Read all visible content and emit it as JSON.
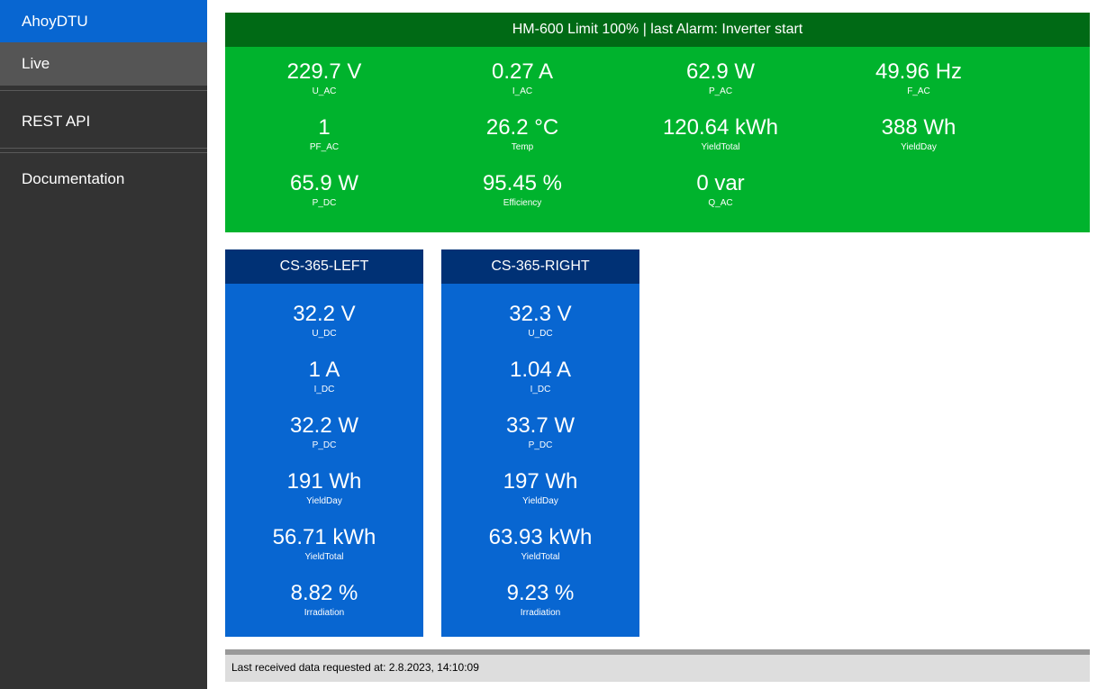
{
  "sidebar": {
    "brand": "AhoyDTU",
    "items": [
      {
        "label": "Live"
      },
      {
        "label": "REST API"
      },
      {
        "label": "Documentation"
      }
    ]
  },
  "inverter": {
    "header": "HM-600 Limit 100% | last Alarm: Inverter start",
    "metrics": [
      {
        "value": "229.7 V",
        "label": "U_AC"
      },
      {
        "value": "0.27 A",
        "label": "I_AC"
      },
      {
        "value": "62.9 W",
        "label": "P_AC"
      },
      {
        "value": "49.96 Hz",
        "label": "F_AC"
      },
      {
        "value": "1",
        "label": "PF_AC"
      },
      {
        "value": "26.2 °C",
        "label": "Temp"
      },
      {
        "value": "120.64 kWh",
        "label": "YieldTotal"
      },
      {
        "value": "388 Wh",
        "label": "YieldDay"
      },
      {
        "value": "65.9 W",
        "label": "P_DC"
      },
      {
        "value": "95.45 %",
        "label": "Efficiency"
      },
      {
        "value": "0 var",
        "label": "Q_AC"
      }
    ]
  },
  "channels": [
    {
      "header": "CS-365-LEFT",
      "metrics": [
        {
          "value": "32.2 V",
          "label": "U_DC"
        },
        {
          "value": "1 A",
          "label": "I_DC"
        },
        {
          "value": "32.2 W",
          "label": "P_DC"
        },
        {
          "value": "191 Wh",
          "label": "YieldDay"
        },
        {
          "value": "56.71 kWh",
          "label": "YieldTotal"
        },
        {
          "value": "8.82 %",
          "label": "Irradiation"
        }
      ]
    },
    {
      "header": "CS-365-RIGHT",
      "metrics": [
        {
          "value": "32.3 V",
          "label": "U_DC"
        },
        {
          "value": "1.04 A",
          "label": "I_DC"
        },
        {
          "value": "33.7 W",
          "label": "P_DC"
        },
        {
          "value": "197 Wh",
          "label": "YieldDay"
        },
        {
          "value": "63.93 kWh",
          "label": "YieldTotal"
        },
        {
          "value": "9.23 %",
          "label": "Irradiation"
        }
      ]
    }
  ],
  "footer": {
    "text": "Last received data requested at: 2.8.2023, 14:10:09"
  },
  "colors": {
    "brand": "#0866d1",
    "inverter_panel": "#00b32d",
    "inverter_header": "#006a15",
    "channel_panel": "#0866d1",
    "channel_header": "#003175"
  }
}
